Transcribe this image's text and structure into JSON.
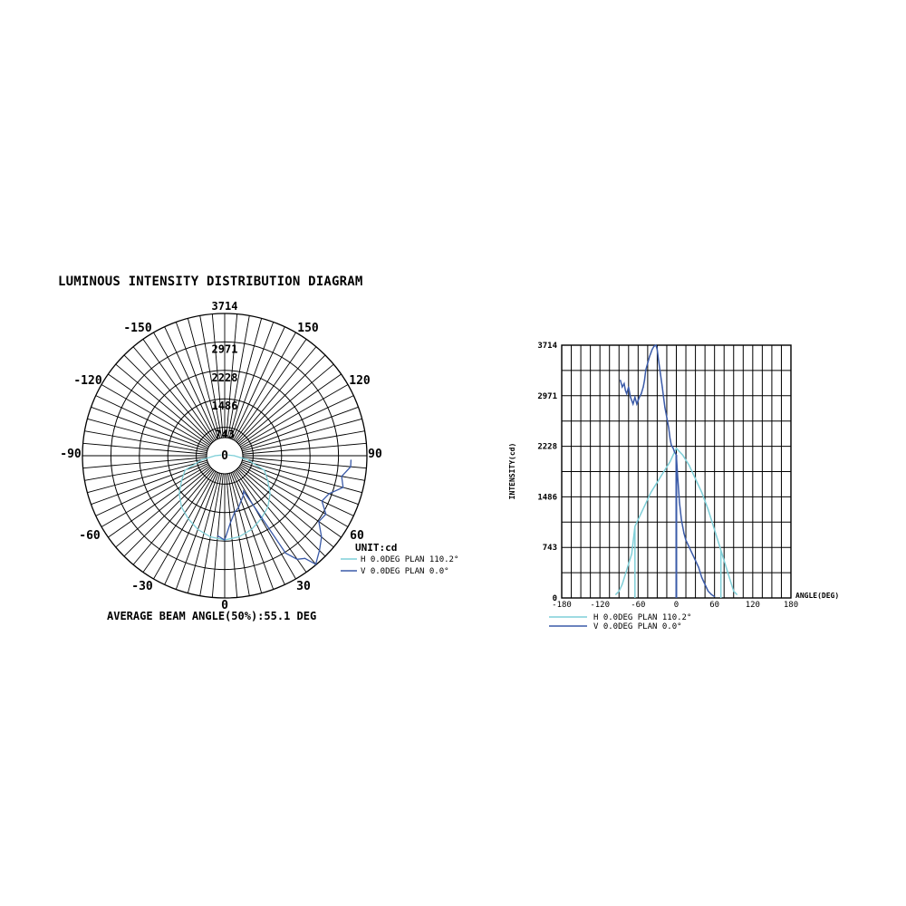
{
  "title": "LUMINOUS INTENSITY DISTRIBUTION DIAGRAM",
  "beam_angle_text": "AVERAGE BEAM ANGLE(50%):55.1 DEG",
  "unit_text": "UNIT:cd",
  "colors": {
    "h_series": "#7fcfd8",
    "v_series": "#3a5aa8",
    "grid": "#000000"
  },
  "chart_data": [
    {
      "type": "polar",
      "radial_ticks": [
        "743",
        "1486",
        "2228",
        "2971",
        "3714"
      ],
      "radial_max": 3714,
      "angle_labels": [
        "0",
        "30",
        "60",
        "90",
        "120",
        "150",
        "-150",
        "-120",
        "-90",
        "-60",
        "-30",
        "0"
      ],
      "unit": "UNIT:cd",
      "legend": [
        "H 0.0DEG PLAN 110.2°",
        "V 0.0DEG PLAN 0.0°"
      ],
      "series": [
        {
          "name": "H 0.0DEG PLAN 110.2°",
          "color": "#7fcfd8",
          "angles": [
            -100,
            -90,
            -80,
            -70,
            -60,
            -50,
            -40,
            -30,
            -20,
            -10,
            0,
            10,
            20,
            30,
            40,
            50,
            60,
            70,
            80,
            90,
            100
          ],
          "values": [
            100,
            250,
            600,
            1100,
            1300,
            1550,
            1750,
            1900,
            2050,
            2150,
            2200,
            2150,
            2050,
            1900,
            1750,
            1550,
            1300,
            1100,
            600,
            250,
            100
          ]
        },
        {
          "name": "V 0.0DEG PLAN 0.0°",
          "color": "#3a5aa8",
          "angles": [
            -5,
            0,
            5,
            10,
            15,
            20,
            25,
            28,
            30,
            32,
            35,
            38,
            40,
            45,
            50,
            55,
            60,
            65,
            70,
            75,
            80,
            85,
            88
          ],
          "values": [
            2100,
            2200,
            1750,
            1500,
            1400,
            1250,
            1150,
            1050,
            1500,
            3000,
            3300,
            3400,
            3700,
            3500,
            3300,
            3000,
            3050,
            2800,
            2900,
            3200,
            3100,
            3300,
            3300
          ]
        }
      ]
    },
    {
      "type": "line",
      "xlabel": "ANGLE(DEG)",
      "ylabel": "INTENSITY(cd)",
      "xlim": [
        -180,
        180
      ],
      "ylim": [
        0,
        3714
      ],
      "x_ticks": [
        -180,
        -120,
        -60,
        0,
        60,
        120,
        180
      ],
      "x_tick_labels": [
        "-180",
        "-120",
        "-60",
        "0",
        "60",
        "120",
        "180"
      ],
      "y_tick_labels": [
        "0",
        "743",
        "1486",
        "2228",
        "2971",
        "3714"
      ],
      "y_ticks": [
        0,
        743,
        1486,
        2228,
        2971,
        3714
      ],
      "series": [
        {
          "name": "H 0.0DEG PLAN 110.2°",
          "color": "#7fcfd8",
          "x": [
            -95,
            -90,
            -85,
            -80,
            -75,
            -70,
            -65,
            -60,
            -50,
            -40,
            -30,
            -20,
            -10,
            -5,
            0,
            5,
            10,
            20,
            30,
            40,
            50,
            60,
            65,
            70,
            75,
            80,
            85,
            90,
            95
          ],
          "y": [
            50,
            100,
            200,
            350,
            500,
            650,
            1050,
            1150,
            1350,
            1550,
            1700,
            1850,
            2000,
            2100,
            2200,
            2150,
            2100,
            1950,
            1750,
            1550,
            1300,
            1000,
            850,
            700,
            550,
            400,
            250,
            100,
            50
          ]
        },
        {
          "name": "V 0.0DEG PLAN 0.0°",
          "color": "#3a5aa8",
          "x": [
            -88,
            -85,
            -82,
            -80,
            -78,
            -75,
            -72,
            -70,
            -68,
            -65,
            -62,
            -60,
            -58,
            -55,
            -52,
            -50,
            -48,
            -45,
            -42,
            -40,
            -38,
            -35,
            -32,
            -30,
            -28,
            -25,
            -22,
            -20,
            -18,
            -15,
            -12,
            -10,
            -8,
            -5,
            -3,
            0,
            2,
            5,
            8,
            10,
            12,
            15,
            20,
            25,
            30,
            35,
            40,
            45,
            50,
            55,
            60
          ],
          "y": [
            3200,
            3100,
            3150,
            3050,
            3000,
            3100,
            2950,
            2900,
            2850,
            2950,
            2850,
            2900,
            2950,
            3000,
            3100,
            3200,
            3350,
            3450,
            3550,
            3600,
            3650,
            3700,
            3714,
            3650,
            3500,
            3300,
            3100,
            2950,
            2800,
            2650,
            2500,
            2350,
            2250,
            2200,
            2150,
            2100,
            1800,
            1400,
            1150,
            1050,
            950,
            850,
            750,
            650,
            550,
            450,
            300,
            200,
            100,
            50,
            20
          ]
        }
      ],
      "legend": [
        "H 0.0DEG PLAN 110.2°",
        "V 0.0DEG PLAN 0.0°"
      ]
    }
  ]
}
